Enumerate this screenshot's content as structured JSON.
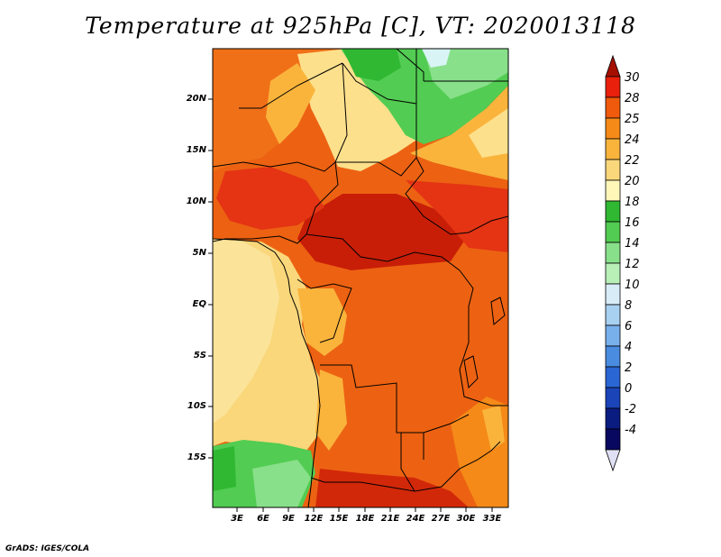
{
  "title": "Temperature at 925hPa [C], VT: 2020013118",
  "footer": "GrADS: IGES/COLA",
  "lat_labels": [
    "20N",
    "15N",
    "10N",
    "5N",
    "EQ",
    "5S",
    "10S",
    "15S"
  ],
  "lon_labels": [
    "3E",
    "6E",
    "9E",
    "12E",
    "15E",
    "18E",
    "21E",
    "24E",
    "27E",
    "30E",
    "33E"
  ],
  "colorbar": {
    "labels": [
      "30",
      "28",
      "25",
      "24",
      "22",
      "20",
      "18",
      "16",
      "14",
      "12",
      "10",
      "8",
      "6",
      "4",
      "2",
      "0",
      "-2",
      "-4"
    ],
    "colors": [
      "#a50f00",
      "#e8200c",
      "#f05a0c",
      "#f58a18",
      "#fab43c",
      "#fad77a",
      "#fff7b8",
      "#30b832",
      "#52cc52",
      "#88e08a",
      "#b8f0b8",
      "#d8ecf8",
      "#a8d0f0",
      "#78b0ec",
      "#4a8ce0",
      "#2a66d4",
      "#1a44b8",
      "#0a1c80",
      "#080860"
    ],
    "below_color": "#e0e0f4"
  }
}
